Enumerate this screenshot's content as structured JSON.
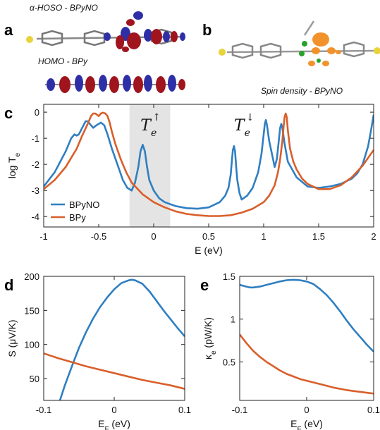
{
  "panels": {
    "a": {
      "letter": "a",
      "caption_top": "α-HOSO - BPyNO",
      "caption_bottom": "HOMO - BPy"
    },
    "b": {
      "letter": "b",
      "caption": "Spin density - BPyNO"
    },
    "c": {
      "letter": "c"
    },
    "d": {
      "letter": "d"
    },
    "e": {
      "letter": "e"
    }
  },
  "colors": {
    "blue": "#2f7fc1",
    "orange": "#d95f2b",
    "shade": "#e4e4e4",
    "lobe_red": "#a0141e",
    "lobe_blue": "#2e2fa6",
    "spin_orange": "#f2922a",
    "spin_green": "#2aa02a"
  },
  "chart_data": [
    {
      "id": "c",
      "type": "line",
      "xlabel": "E (eV)",
      "ylabel": "log T",
      "ylabel_sub": "e",
      "xlim": [
        -1,
        2
      ],
      "ylim": [
        -4.4,
        0.3
      ],
      "xticks": [
        -1,
        -0.5,
        0,
        0.5,
        1,
        1.5,
        2
      ],
      "xticklabels": [
        "-1",
        "-0.5",
        "0",
        "0.5",
        "1",
        "1.5",
        "2"
      ],
      "yticks": [
        0,
        -1,
        -2,
        -3,
        -4
      ],
      "yticklabels": [
        "0",
        "-1",
        "-2",
        "-3",
        "-4"
      ],
      "shaded_region": [
        -0.22,
        0.15
      ],
      "annotations": [
        {
          "base": "T",
          "sub": "e",
          "sup": "↑",
          "x": -0.12,
          "y": -0.1
        },
        {
          "base": "T",
          "sub": "e",
          "sup": "↓",
          "x": 0.73,
          "y": -0.1
        }
      ],
      "legend": {
        "placement": "bottom-left"
      },
      "series": [
        {
          "name": "BPyNO",
          "color": "blue",
          "x": [
            -1,
            -0.9,
            -0.8,
            -0.75,
            -0.72,
            -0.7,
            -0.68,
            -0.65,
            -0.62,
            -0.6,
            -0.58,
            -0.55,
            -0.52,
            -0.5,
            -0.48,
            -0.45,
            -0.42,
            -0.38,
            -0.33,
            -0.28,
            -0.24,
            -0.2,
            -0.17,
            -0.14,
            -0.12,
            -0.1,
            -0.08,
            -0.06,
            -0.04,
            0,
            0.05,
            0.1,
            0.2,
            0.3,
            0.4,
            0.5,
            0.6,
            0.65,
            0.68,
            0.7,
            0.71,
            0.72,
            0.73,
            0.74,
            0.75,
            0.76,
            0.78,
            0.8,
            0.85,
            0.9,
            0.95,
            0.98,
            1.0,
            1.01,
            1.02,
            1.03,
            1.05,
            1.08,
            1.1,
            1.12,
            1.14,
            1.15,
            1.16,
            1.17,
            1.19,
            1.22,
            1.3,
            1.4,
            1.5,
            1.6,
            1.7,
            1.8,
            1.85,
            1.9,
            1.95,
            1.98,
            2.0
          ],
          "y": [
            -2.85,
            -2.3,
            -1.5,
            -1.0,
            -0.85,
            -0.9,
            -0.85,
            -0.6,
            -0.35,
            -0.35,
            -0.45,
            -0.6,
            -0.5,
            -0.45,
            -0.4,
            -0.5,
            -0.85,
            -1.4,
            -2.0,
            -2.6,
            -2.9,
            -3.0,
            -2.7,
            -2.1,
            -1.5,
            -1.25,
            -1.5,
            -2.1,
            -2.6,
            -3.0,
            -3.3,
            -3.45,
            -3.6,
            -3.68,
            -3.7,
            -3.65,
            -3.45,
            -3.2,
            -2.9,
            -2.4,
            -1.9,
            -1.45,
            -1.3,
            -1.5,
            -2.1,
            -2.6,
            -3.1,
            -3.35,
            -3.2,
            -2.9,
            -2.3,
            -1.6,
            -0.85,
            -0.45,
            -0.3,
            -0.5,
            -1.1,
            -1.7,
            -2.1,
            -1.8,
            -1.0,
            -0.6,
            -0.45,
            -0.6,
            -1.2,
            -1.9,
            -2.5,
            -2.85,
            -2.9,
            -2.85,
            -2.75,
            -2.55,
            -2.35,
            -2.0,
            -1.3,
            -0.6,
            -0.1
          ]
        },
        {
          "name": "BPy",
          "color": "orange",
          "x": [
            -1,
            -0.9,
            -0.8,
            -0.7,
            -0.65,
            -0.6,
            -0.57,
            -0.55,
            -0.53,
            -0.5,
            -0.48,
            -0.46,
            -0.44,
            -0.42,
            -0.4,
            -0.38,
            -0.35,
            -0.3,
            -0.25,
            -0.2,
            -0.1,
            0,
            0.1,
            0.2,
            0.3,
            0.4,
            0.5,
            0.6,
            0.7,
            0.8,
            0.9,
            1.0,
            1.05,
            1.1,
            1.13,
            1.15,
            1.17,
            1.18,
            1.19,
            1.2,
            1.21,
            1.22,
            1.24,
            1.27,
            1.3,
            1.35,
            1.4,
            1.5,
            1.6,
            1.7,
            1.8,
            1.9,
            2.0
          ],
          "y": [
            -2.95,
            -2.6,
            -2.1,
            -1.4,
            -0.9,
            -0.45,
            -0.15,
            -0.05,
            -0.05,
            -0.15,
            -0.05,
            -0.02,
            -0.05,
            -0.15,
            -0.4,
            -0.75,
            -1.2,
            -1.8,
            -2.3,
            -2.7,
            -3.15,
            -3.45,
            -3.65,
            -3.8,
            -3.9,
            -3.95,
            -3.98,
            -3.98,
            -3.95,
            -3.85,
            -3.7,
            -3.45,
            -3.2,
            -2.8,
            -2.3,
            -1.8,
            -1.1,
            -0.6,
            -0.2,
            -0.05,
            -0.2,
            -0.7,
            -1.4,
            -1.9,
            -2.2,
            -2.55,
            -2.75,
            -2.95,
            -2.95,
            -2.8,
            -2.5,
            -2.05,
            -1.45
          ]
        }
      ]
    },
    {
      "id": "d",
      "type": "line",
      "xlabel": "E",
      "xlabel_sub": "F",
      "xlabel_tail": " (eV)",
      "ylabel": "S (μV/K)",
      "xlim": [
        -0.1,
        0.1
      ],
      "ylim": [
        18,
        200
      ],
      "xticks": [
        -0.1,
        0,
        0.1
      ],
      "xticklabels": [
        "-0.1",
        "0",
        "0.1"
      ],
      "yticks": [
        50,
        100,
        150,
        200
      ],
      "yticklabels": [
        "50",
        "100",
        "150",
        "200"
      ],
      "series": [
        {
          "name": "BPyNO",
          "color": "blue",
          "x": [
            -0.077,
            -0.07,
            -0.06,
            -0.05,
            -0.04,
            -0.03,
            -0.02,
            -0.01,
            0,
            0.01,
            0.02,
            0.025,
            0.03,
            0.04,
            0.05,
            0.06,
            0.07,
            0.08,
            0.09,
            0.1
          ],
          "y": [
            18,
            40,
            68,
            95,
            118,
            138,
            155,
            169,
            181,
            190,
            194,
            195,
            194,
            189,
            178,
            164,
            150,
            137,
            124,
            112
          ]
        },
        {
          "name": "BPy",
          "color": "orange",
          "x": [
            -0.1,
            -0.08,
            -0.06,
            -0.04,
            -0.02,
            0,
            0.02,
            0.04,
            0.06,
            0.08,
            0.1
          ],
          "y": [
            87,
            80,
            74,
            68,
            63,
            58,
            53,
            48,
            44,
            40,
            35
          ]
        }
      ]
    },
    {
      "id": "e",
      "type": "line",
      "xlabel": "E",
      "xlabel_sub": "F",
      "xlabel_tail": " (eV)",
      "ylabel": "κ",
      "ylabel_sub": "e",
      "ylabel_tail": " (pW/K)",
      "xlim": [
        -0.1,
        0.1
      ],
      "ylim": [
        0.05,
        1.5
      ],
      "xticks": [
        -0.1,
        0,
        0.1
      ],
      "xticklabels": [
        "-0.1",
        "0",
        "0.1"
      ],
      "yticks": [
        0.5,
        1,
        1.5
      ],
      "yticklabels": [
        "0.5",
        "1",
        "1.5"
      ],
      "series": [
        {
          "name": "BPyNO",
          "color": "blue",
          "x": [
            -0.1,
            -0.095,
            -0.09,
            -0.085,
            -0.08,
            -0.07,
            -0.06,
            -0.05,
            -0.04,
            -0.03,
            -0.02,
            -0.01,
            0,
            0.01,
            0.02,
            0.03,
            0.04,
            0.05,
            0.06,
            0.07,
            0.08,
            0.09,
            0.1
          ],
          "y": [
            1.4,
            1.39,
            1.38,
            1.37,
            1.37,
            1.38,
            1.4,
            1.42,
            1.44,
            1.455,
            1.46,
            1.455,
            1.44,
            1.41,
            1.35,
            1.28,
            1.19,
            1.09,
            0.98,
            0.88,
            0.79,
            0.7,
            0.62
          ]
        },
        {
          "name": "BPy",
          "color": "orange",
          "x": [
            -0.1,
            -0.09,
            -0.08,
            -0.07,
            -0.06,
            -0.05,
            -0.04,
            -0.03,
            -0.02,
            -0.01,
            0,
            0.02,
            0.04,
            0.06,
            0.08,
            0.1
          ],
          "y": [
            0.82,
            0.72,
            0.63,
            0.56,
            0.5,
            0.45,
            0.4,
            0.36,
            0.33,
            0.3,
            0.28,
            0.24,
            0.2,
            0.17,
            0.15,
            0.13
          ]
        }
      ]
    }
  ]
}
